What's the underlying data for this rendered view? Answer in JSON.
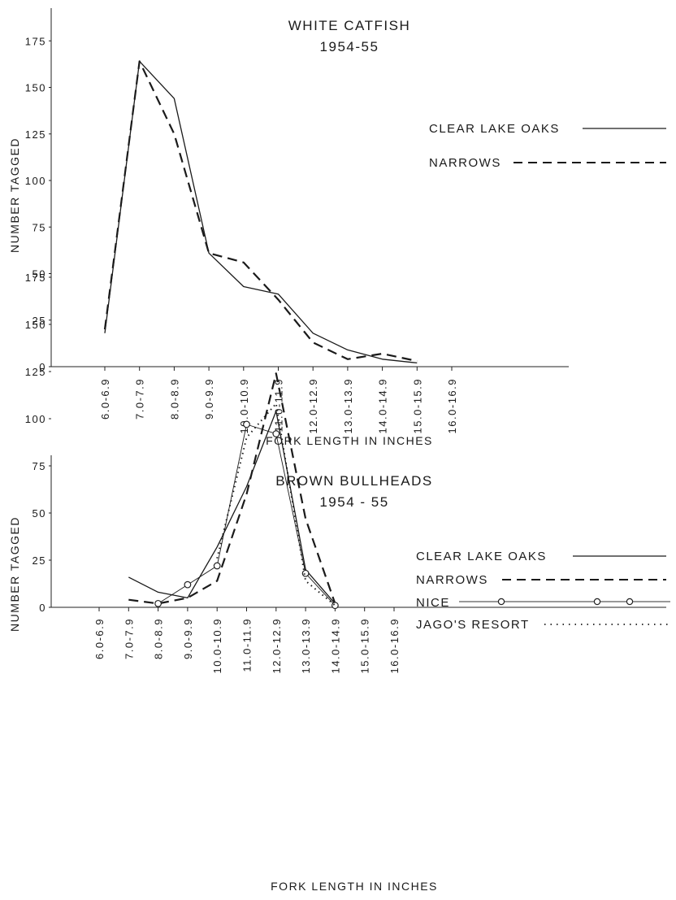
{
  "chart_data": [
    {
      "type": "line",
      "title": "WHITE CATFISH",
      "subtitle": "1954-55",
      "xlabel": "FORK LENGTH IN INCHES",
      "ylabel": "NUMBER TAGGED",
      "ylim": [
        0,
        190
      ],
      "yticks": [
        "0",
        "25",
        "50",
        "75",
        "100",
        "125",
        "150",
        "175"
      ],
      "categories": [
        "6.0-6.9",
        "7.0-7.9",
        "8.0-8.9",
        "9.0-9.9",
        "10.0-10.9",
        "11.0-11.9",
        "12.0-12.9",
        "13.0-13.9",
        "14.0-14.9",
        "15.0-15.9",
        "16.0-16.9"
      ],
      "series": [
        {
          "name": "CLEAR LAKE OAKS",
          "style": "solid",
          "values": [
            18,
            164,
            144,
            61,
            43,
            39,
            18,
            9,
            4,
            2,
            null
          ]
        },
        {
          "name": "NARROWS",
          "style": "dashed",
          "values": [
            20,
            164,
            125,
            61,
            56,
            36,
            13,
            4,
            7,
            3,
            null
          ]
        }
      ],
      "grid": false,
      "legend_position": "right"
    },
    {
      "type": "line",
      "title": "BROWN BULLHEADS",
      "subtitle": "1954 - 55",
      "xlabel": "FORK LENGTH IN INCHES",
      "ylabel": "NUMBER TAGGED",
      "ylim": [
        0,
        190
      ],
      "yticks": [
        "0",
        "25",
        "50",
        "75",
        "100",
        "125",
        "150",
        "175"
      ],
      "categories": [
        "6.0-6.9",
        "7.0-7.9",
        "8.0-8.9",
        "9.0-9.9",
        "10.0-10.9",
        "11.0-11.9",
        "12.0-12.9",
        "13.0-13.9",
        "14.0-14.9",
        "15.0-15.9",
        "16.0-16.9"
      ],
      "series": [
        {
          "name": "CLEAR LAKE OAKS",
          "style": "solid",
          "values": [
            null,
            16,
            8,
            5,
            32,
            64,
            104,
            20,
            2,
            null,
            null
          ]
        },
        {
          "name": "NARROWS",
          "style": "dashed",
          "values": [
            null,
            4,
            2,
            5,
            14,
            60,
            124,
            47,
            2,
            null,
            null
          ]
        },
        {
          "name": "NICE",
          "style": "circles",
          "values": [
            null,
            null,
            2,
            12,
            22,
            97,
            92,
            18,
            1,
            null,
            null
          ]
        },
        {
          "name": "JAGO'S RESORT",
          "style": "dotted",
          "values": [
            null,
            null,
            null,
            null,
            26,
            90,
            108,
            14,
            1,
            null,
            null
          ]
        }
      ],
      "grid": false,
      "legend_position": "right"
    }
  ]
}
